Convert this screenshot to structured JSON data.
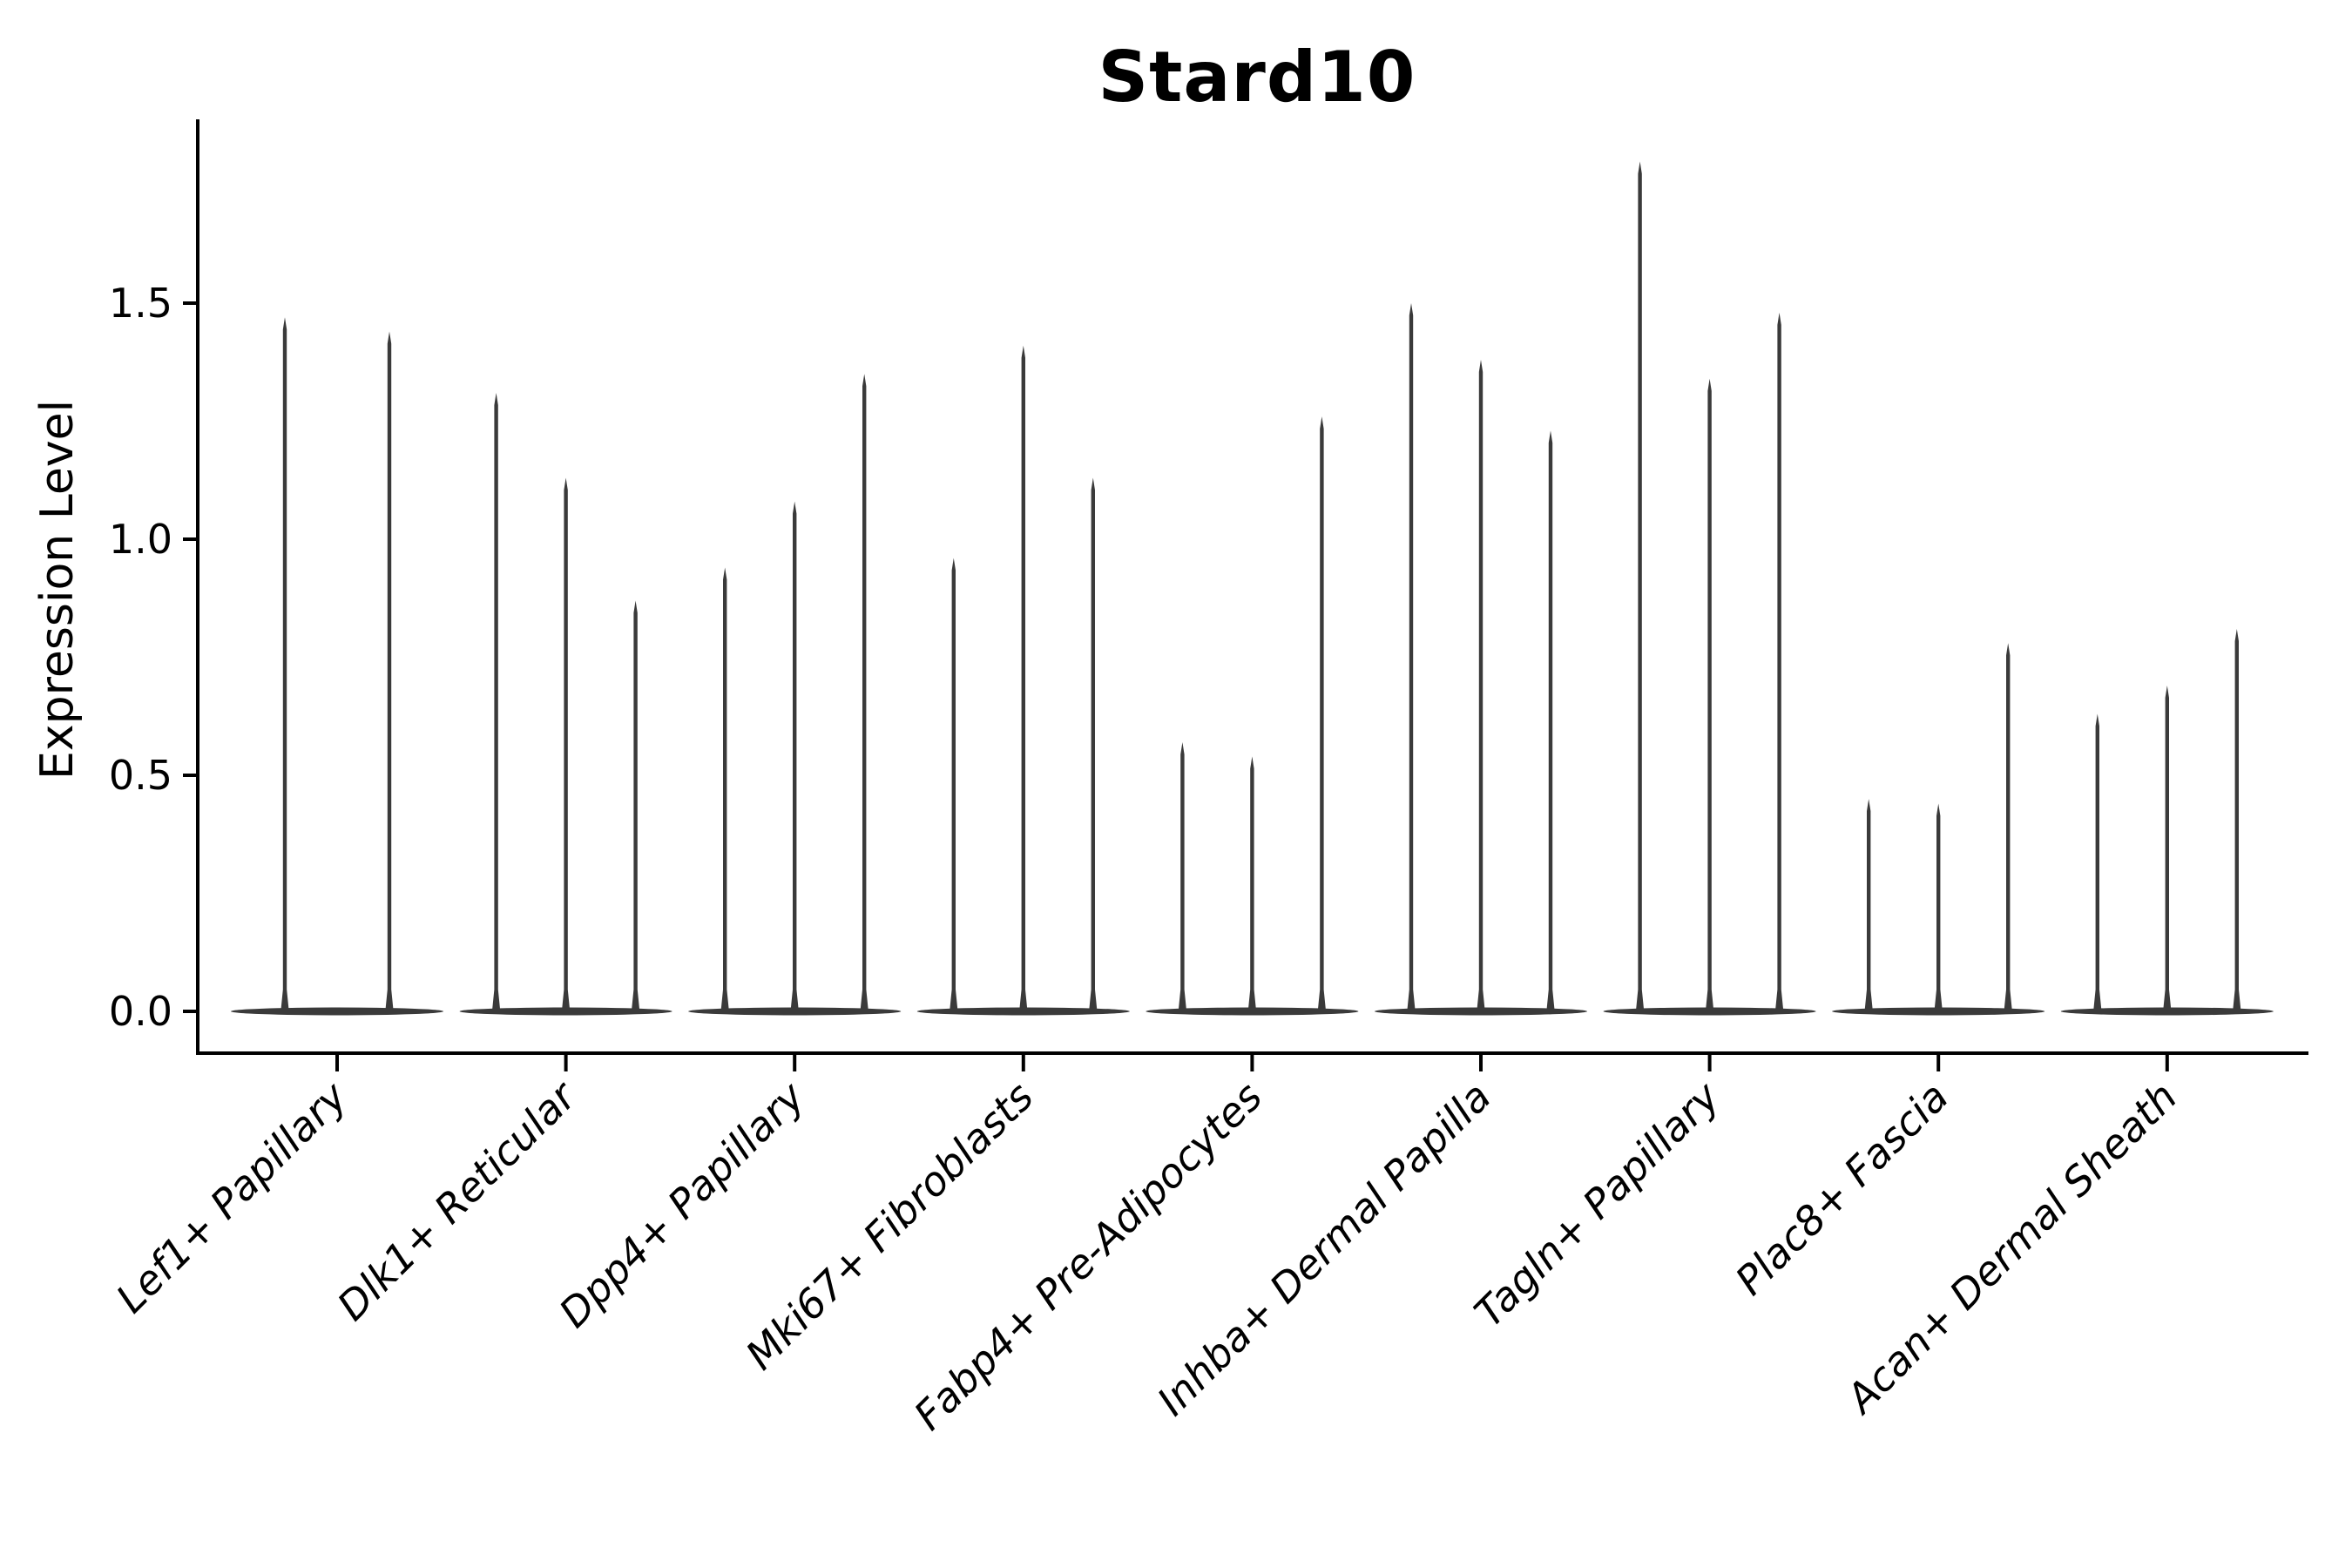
{
  "figure": {
    "title": "Stard10",
    "background_color": "#ffffff"
  },
  "chart_data": {
    "type": "violin",
    "title": "Stard10",
    "xlabel": "",
    "ylabel": "Expression Level",
    "categories": [
      "Lef1+ Papillary",
      "Dlk1+ Reticular",
      "Dpp4+ Papillary",
      "Mki67+ Fibroblasts",
      "Fabp4+ Pre-Adipocytes",
      "Inhba+ Dermal Papilla",
      "Tagln+ Papillary",
      "Plac8+ Fascia",
      "Acan+ Dermal Sheath"
    ],
    "series": [
      {
        "category": "Lef1+ Papillary",
        "violin_maxima": [
          1.47,
          1.44
        ]
      },
      {
        "category": "Dlk1+ Reticular",
        "violin_maxima": [
          1.31,
          1.13,
          0.87
        ]
      },
      {
        "category": "Dpp4+ Papillary",
        "violin_maxima": [
          0.94,
          1.08,
          1.35
        ]
      },
      {
        "category": "Mki67+ Fibroblasts",
        "violin_maxima": [
          0.96,
          1.41,
          1.13
        ]
      },
      {
        "category": "Fabp4+ Pre-Adipocytes",
        "violin_maxima": [
          0.57,
          0.54,
          1.26
        ]
      },
      {
        "category": "Inhba+ Dermal Papilla",
        "violin_maxima": [
          1.5,
          1.38,
          1.23
        ]
      },
      {
        "category": "Tagln+ Papillary",
        "violin_maxima": [
          1.8,
          1.34,
          1.48
        ]
      },
      {
        "category": "Plac8+ Fascia",
        "violin_maxima": [
          0.45,
          0.44,
          0.78
        ]
      },
      {
        "category": "Acan+ Dermal Sheath",
        "violin_maxima": [
          0.63,
          0.69,
          0.81
        ]
      }
    ],
    "violin_shape_note": "each violin is a thin needle spike rising from a flat wide base of mass at 0",
    "yticks": [
      0.0,
      0.5,
      1.0,
      1.5
    ],
    "ytick_labels": [
      "0.0",
      "0.5",
      "1.0",
      "1.5"
    ],
    "ylim": [
      -0.09,
      1.89
    ],
    "grid": false,
    "legend": null,
    "x_tick_label_style": "italic, rotated 45 degrees, right-anchored",
    "colors": {
      "violin": "#3a3a3a",
      "axis": "#000000",
      "text": "#000000"
    }
  }
}
